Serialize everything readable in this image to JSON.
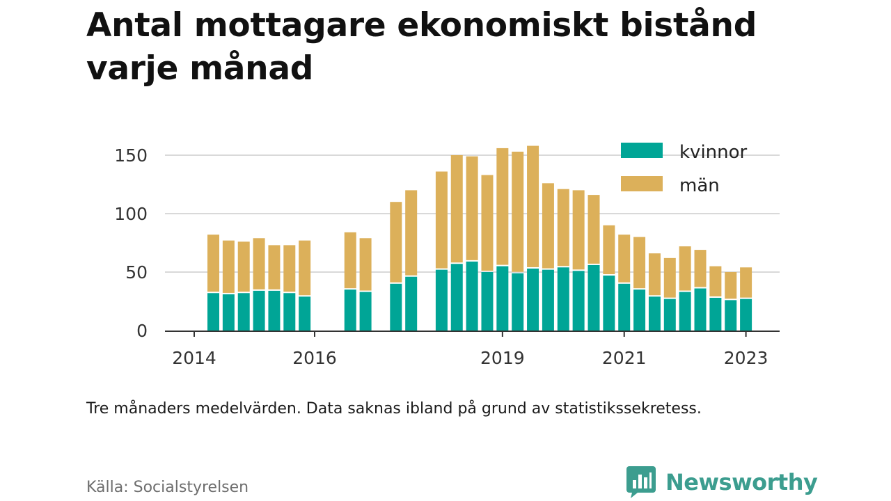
{
  "title": "Antal mottagare ekonomiskt bistånd varje månad",
  "note": "Tre månaders medelvärden. Data saknas ibland på grund av statistikssekretess.",
  "source": "Källa: Socialstyrelsen",
  "brand": {
    "name": "Newsworthy",
    "icon": "bar-chart-speech-bubble-icon",
    "color": "#3c9d8f"
  },
  "colors": {
    "kvinnor": "#00a596",
    "man": "#dcb05a",
    "grid": "#d9d9d9",
    "axis": "#333333"
  },
  "chart_data": {
    "type": "bar",
    "stacked": true,
    "x_ticks": [
      "2014",
      "2016",
      "2019",
      "2021",
      "2023"
    ],
    "y_ticks": [
      0,
      50,
      100,
      150
    ],
    "ylim": [
      0,
      160
    ],
    "grid": true,
    "legend_position": "top-right",
    "series_order": [
      "kvinnor",
      "män"
    ],
    "periods": [
      {
        "period": "2014-Q2",
        "kvinnor": 32,
        "män": 50
      },
      {
        "period": "2014-Q3",
        "kvinnor": 31,
        "män": 46
      },
      {
        "period": "2014-Q4",
        "kvinnor": 32,
        "män": 44
      },
      {
        "period": "2015-Q1",
        "kvinnor": 34,
        "män": 45
      },
      {
        "period": "2015-Q2",
        "kvinnor": 34,
        "män": 39
      },
      {
        "period": "2015-Q3",
        "kvinnor": 32,
        "män": 41
      },
      {
        "period": "2015-Q4",
        "kvinnor": 29,
        "män": 48
      },
      {
        "period": "2016-Q1",
        "kvinnor": null,
        "män": null
      },
      {
        "period": "2016-Q2",
        "kvinnor": null,
        "män": null
      },
      {
        "period": "2016-Q3",
        "kvinnor": 35,
        "män": 49
      },
      {
        "period": "2016-Q4",
        "kvinnor": 33,
        "män": 46
      },
      {
        "period": "2017-Q1",
        "kvinnor": null,
        "män": null
      },
      {
        "period": "2017-Q2",
        "kvinnor": 40,
        "män": 70
      },
      {
        "period": "2017-Q3",
        "kvinnor": 46,
        "män": 74
      },
      {
        "period": "2017-Q4",
        "kvinnor": null,
        "män": null
      },
      {
        "period": "2018-Q1",
        "kvinnor": 52,
        "män": 84
      },
      {
        "period": "2018-Q2",
        "kvinnor": 57,
        "män": 93
      },
      {
        "period": "2018-Q3",
        "kvinnor": 59,
        "män": 90
      },
      {
        "period": "2018-Q4",
        "kvinnor": 50,
        "män": 83
      },
      {
        "period": "2019-Q1",
        "kvinnor": 55,
        "män": 101
      },
      {
        "period": "2019-Q2",
        "kvinnor": 49,
        "män": 104
      },
      {
        "period": "2019-Q3",
        "kvinnor": 53,
        "män": 105
      },
      {
        "period": "2019-Q4",
        "kvinnor": 52,
        "män": 74
      },
      {
        "period": "2020-Q1",
        "kvinnor": 54,
        "män": 67
      },
      {
        "period": "2020-Q2",
        "kvinnor": 51,
        "män": 69
      },
      {
        "period": "2020-Q3",
        "kvinnor": 56,
        "män": 60
      },
      {
        "period": "2020-Q4",
        "kvinnor": 47,
        "män": 43
      },
      {
        "period": "2021-Q1",
        "kvinnor": 40,
        "män": 42
      },
      {
        "period": "2021-Q2",
        "kvinnor": 35,
        "män": 45
      },
      {
        "period": "2021-Q3",
        "kvinnor": 29,
        "män": 37
      },
      {
        "period": "2021-Q4",
        "kvinnor": 27,
        "män": 35
      },
      {
        "period": "2022-Q1",
        "kvinnor": 33,
        "män": 39
      },
      {
        "period": "2022-Q2",
        "kvinnor": 36,
        "män": 33
      },
      {
        "period": "2022-Q3",
        "kvinnor": 28,
        "män": 27
      },
      {
        "period": "2022-Q4",
        "kvinnor": 26,
        "män": 24
      },
      {
        "period": "2023-Q1",
        "kvinnor": 27,
        "män": 27
      }
    ]
  }
}
